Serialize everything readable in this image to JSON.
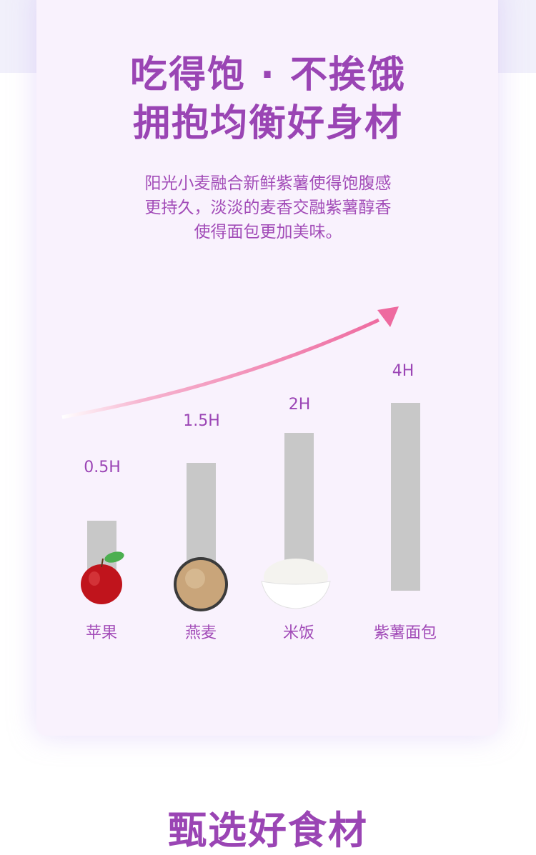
{
  "headline": {
    "line1": "吃得饱 · 不挨饿",
    "line2": "拥抱均衡好身材"
  },
  "description": {
    "line1": "阳光小麦融合新鲜紫薯使得饱腹感",
    "line2": "更持久，淡淡的麦香交融紫薯醇香",
    "line3": "使得面包更加美味。"
  },
  "chart_data": {
    "type": "bar",
    "categories": [
      "苹果",
      "燕麦",
      "米饭",
      "紫薯面包"
    ],
    "values": [
      0.5,
      1.5,
      2,
      4
    ],
    "data_labels": [
      "0.5H",
      "1.5H",
      "2H",
      "4H"
    ],
    "unit": "H",
    "bar_color": "#c8c8c8",
    "trend_arrow_color": "#ee6a9f",
    "grid": false
  },
  "section_title": "甄选好食材",
  "colors": {
    "accent": "#9a45b4",
    "card_bg": "#f9f2fd"
  }
}
